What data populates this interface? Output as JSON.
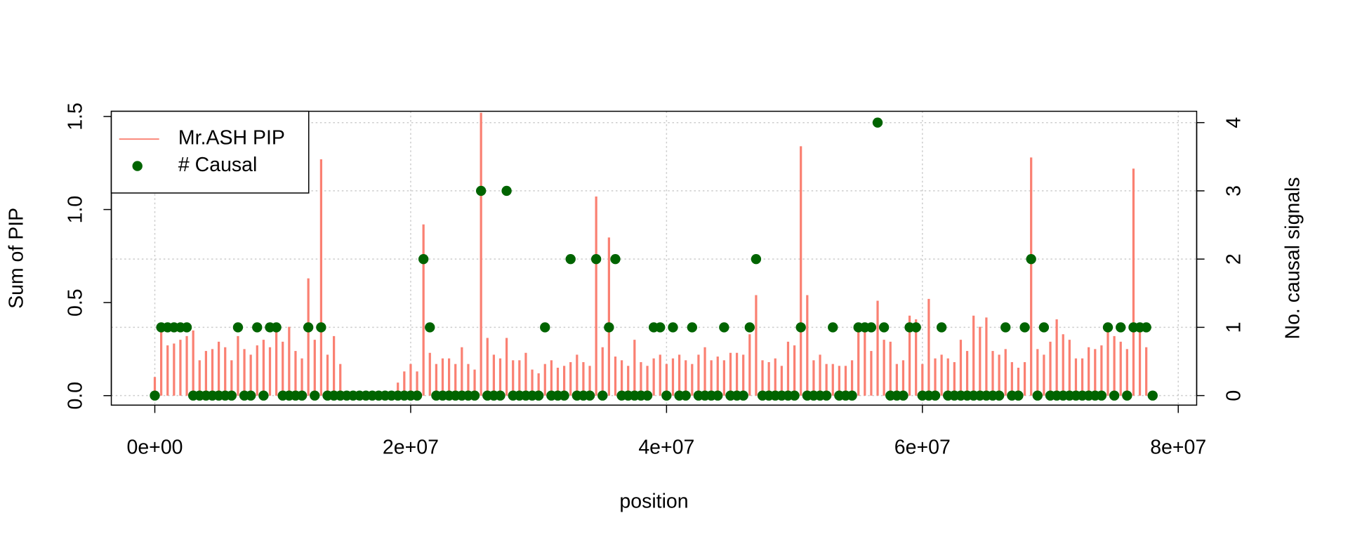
{
  "chart_data": {
    "type": "combo",
    "xlabel": "position",
    "ylabel": "Sum of PIP",
    "y2label": "No. causal signals",
    "x": [
      0,
      500000,
      1000000,
      1500000,
      2000000,
      2500000,
      3000000,
      3500000,
      4000000,
      4500000,
      5000000,
      5500000,
      6000000,
      6500000,
      7000000,
      7500000,
      8000000,
      8500000,
      9000000,
      9500000,
      10000000,
      10500000,
      11000000,
      11500000,
      12000000,
      12500000,
      13000000,
      13500000,
      14000000,
      14500000,
      15000000,
      15500000,
      16000000,
      16500000,
      17000000,
      17500000,
      18000000,
      18500000,
      19000000,
      19500000,
      20000000,
      20500000,
      21000000,
      21500000,
      22000000,
      22500000,
      23000000,
      23500000,
      24000000,
      24500000,
      25000000,
      25500000,
      26000000,
      26500000,
      27000000,
      27500000,
      28000000,
      28500000,
      29000000,
      29500000,
      30000000,
      30500000,
      31000000,
      31500000,
      32000000,
      32500000,
      33000000,
      33500000,
      34000000,
      34500000,
      35000000,
      35500000,
      36000000,
      36500000,
      37000000,
      37500000,
      38000000,
      38500000,
      39000000,
      39500000,
      40000000,
      40500000,
      41000000,
      41500000,
      42000000,
      42500000,
      43000000,
      43500000,
      44000000,
      44500000,
      45000000,
      45500000,
      46000000,
      46500000,
      47000000,
      47500000,
      48000000,
      48500000,
      49000000,
      49500000,
      50000000,
      50500000,
      51000000,
      51500000,
      52000000,
      52500000,
      53000000,
      53500000,
      54000000,
      54500000,
      55000000,
      55500000,
      56000000,
      56500000,
      57000000,
      57500000,
      58000000,
      58500000,
      59000000,
      59500000,
      60000000,
      60500000,
      61000000,
      61500000,
      62000000,
      62500000,
      63000000,
      63500000,
      64000000,
      64500000,
      65000000,
      65500000,
      66000000,
      66500000,
      67000000,
      67500000,
      68000000,
      68500000,
      69000000,
      69500000,
      70000000,
      70500000,
      71000000,
      71500000,
      72000000,
      72500000,
      73000000,
      73500000,
      74000000,
      74500000,
      75000000,
      75500000,
      76000000,
      76500000,
      77000000,
      77500000,
      78000000
    ],
    "series": [
      {
        "name": "Mr.ASH PIP",
        "type": "bar",
        "color": "#fa8072",
        "values": [
          0.1,
          0.38,
          0.27,
          0.28,
          0.3,
          0.32,
          0.35,
          0.19,
          0.24,
          0.25,
          0.29,
          0.26,
          0.19,
          0.32,
          0.25,
          0.22,
          0.27,
          0.3,
          0.26,
          0.34,
          0.29,
          0.37,
          0.24,
          0.2,
          0.63,
          0.3,
          1.27,
          0.22,
          0.32,
          0.17,
          0,
          0,
          0,
          0,
          0,
          0,
          0,
          0,
          0.07,
          0.13,
          0.17,
          0.13,
          0.92,
          0.23,
          0.17,
          0.2,
          0.2,
          0.17,
          0.26,
          0.17,
          0.14,
          1.52,
          0.31,
          0.22,
          0.2,
          0.31,
          0.19,
          0.19,
          0.23,
          0.14,
          0.12,
          0.17,
          0.19,
          0.15,
          0.16,
          0.18,
          0.22,
          0.18,
          0.16,
          1.07,
          0.26,
          0.85,
          0.21,
          0.19,
          0.16,
          0.3,
          0.18,
          0.16,
          0.2,
          0.22,
          0.17,
          0.2,
          0.22,
          0.19,
          0.17,
          0.22,
          0.26,
          0.19,
          0.21,
          0.19,
          0.23,
          0.23,
          0.22,
          0.33,
          0.54,
          0.19,
          0.18,
          0.2,
          0.16,
          0.29,
          0.27,
          1.34,
          0.54,
          0.19,
          0.22,
          0.17,
          0.17,
          0.16,
          0.16,
          0.19,
          0.38,
          0.38,
          0.24,
          0.51,
          0.3,
          0.29,
          0.17,
          0.19,
          0.43,
          0.41,
          0.17,
          0.52,
          0.2,
          0.22,
          0.2,
          0.18,
          0.3,
          0.24,
          0.43,
          0.37,
          0.42,
          0.24,
          0.22,
          0.25,
          0.18,
          0.15,
          0.18,
          1.28,
          0.25,
          0.22,
          0.29,
          0.41,
          0.33,
          0.3,
          0.2,
          0.2,
          0.26,
          0.25,
          0.27,
          0.38,
          0.32,
          0.29,
          0.25,
          1.22,
          0.37,
          0.26,
          0
        ]
      },
      {
        "name": "# Causal",
        "type": "scatter",
        "axis": "y2",
        "color": "#006400",
        "values": [
          0,
          1,
          1,
          1,
          1,
          1,
          0,
          0,
          0,
          0,
          0,
          0,
          0,
          1,
          0,
          0,
          1,
          0,
          1,
          1,
          0,
          0,
          0,
          0,
          1,
          0,
          1,
          0,
          0,
          0,
          0,
          0,
          0,
          0,
          0,
          0,
          0,
          0,
          0,
          0,
          0,
          0,
          2,
          1,
          0,
          0,
          0,
          0,
          0,
          0,
          0,
          3,
          0,
          0,
          0,
          3,
          0,
          0,
          0,
          0,
          0,
          1,
          0,
          0,
          0,
          2,
          0,
          0,
          0,
          2,
          0,
          1,
          2,
          0,
          0,
          0,
          0,
          0,
          1,
          1,
          0,
          1,
          0,
          0,
          1,
          0,
          0,
          0,
          0,
          1,
          0,
          0,
          0,
          1,
          2,
          0,
          0,
          0,
          0,
          0,
          0,
          1,
          0,
          0,
          0,
          0,
          1,
          0,
          0,
          0,
          1,
          1,
          1,
          4,
          1,
          0,
          0,
          0,
          1,
          1,
          0,
          0,
          0,
          1,
          0,
          0,
          0,
          0,
          0,
          0,
          0,
          0,
          0,
          1,
          0,
          0,
          1,
          2,
          0,
          1,
          0,
          0,
          0,
          0,
          0,
          0,
          0,
          0,
          0,
          1,
          0,
          1,
          0,
          1,
          1,
          1,
          0
        ]
      }
    ],
    "xlim": [
      -3400000,
      81440000
    ],
    "xticks": [
      {
        "value": 0,
        "label": "0e+00"
      },
      {
        "value": 20000000,
        "label": "2e+07"
      },
      {
        "value": 40000000,
        "label": "4e+07"
      },
      {
        "value": 60000000,
        "label": "6e+07"
      },
      {
        "value": 80000000,
        "label": "8e+07"
      }
    ],
    "ylim": [
      -0.051,
      1.528
    ],
    "yticks": [
      {
        "value": 0,
        "label": "0.0"
      },
      {
        "value": 0.5,
        "label": "0.5"
      },
      {
        "value": 1,
        "label": "1.0"
      },
      {
        "value": 1.5,
        "label": "1.5"
      }
    ],
    "y2lim": [
      -0.14,
      4.166
    ],
    "y2ticks": [
      0,
      1,
      2,
      3,
      4
    ],
    "grid": true,
    "legend": "topleft"
  }
}
